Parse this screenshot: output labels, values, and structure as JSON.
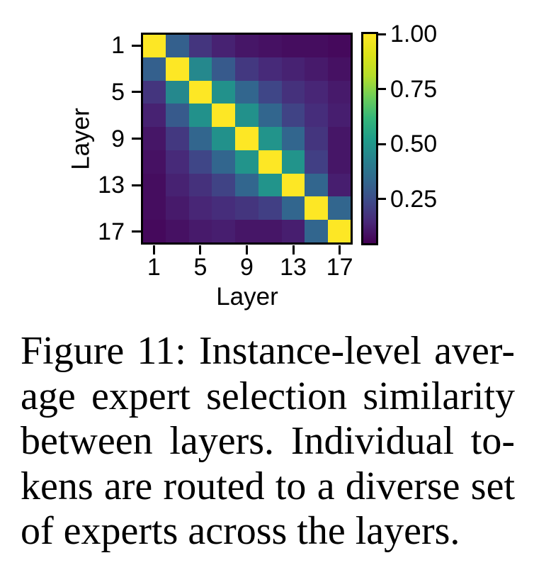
{
  "figure": {
    "caption_lines": [
      "Figure 11: Instance-level aver-",
      "age expert selection similarity",
      "between layers. Individual to-",
      "kens are routed to a diverse set",
      "of experts across the layers."
    ],
    "caption_text": "Figure 11: Instance-level average expert selection similarity between layers. Individual tokens are routed to a diverse set of experts across the layers."
  },
  "chart_data": {
    "type": "heatmap",
    "title": "",
    "xlabel": "Layer",
    "ylabel": "Layer",
    "layers": [
      1,
      3,
      5,
      7,
      9,
      11,
      13,
      15,
      17
    ],
    "tick_labels": [
      "1",
      "5",
      "9",
      "13",
      "17"
    ],
    "tick_cell_indices": [
      0,
      2,
      4,
      6,
      8
    ],
    "matrix": [
      [
        1.0,
        0.31,
        0.18,
        0.13,
        0.1,
        0.09,
        0.08,
        0.08,
        0.07
      ],
      [
        0.31,
        1.0,
        0.45,
        0.29,
        0.19,
        0.15,
        0.13,
        0.11,
        0.09
      ],
      [
        0.18,
        0.45,
        1.0,
        0.48,
        0.33,
        0.23,
        0.17,
        0.14,
        0.11
      ],
      [
        0.13,
        0.29,
        0.48,
        1.0,
        0.48,
        0.33,
        0.22,
        0.16,
        0.12
      ],
      [
        0.1,
        0.19,
        0.33,
        0.48,
        1.0,
        0.49,
        0.33,
        0.18,
        0.1
      ],
      [
        0.09,
        0.15,
        0.23,
        0.33,
        0.49,
        1.0,
        0.49,
        0.21,
        0.1
      ],
      [
        0.08,
        0.13,
        0.17,
        0.22,
        0.33,
        0.49,
        1.0,
        0.33,
        0.12
      ],
      [
        0.08,
        0.11,
        0.14,
        0.16,
        0.18,
        0.21,
        0.33,
        1.0,
        0.33
      ],
      [
        0.07,
        0.09,
        0.11,
        0.12,
        0.1,
        0.1,
        0.12,
        0.33,
        1.0
      ]
    ],
    "colormap": "viridis",
    "vmin": 0.05,
    "vmax": 1.0,
    "grid": false,
    "colorbar": {
      "tick_values": [
        1.0,
        0.75,
        0.5,
        0.25
      ],
      "tick_labels": [
        "1.00",
        "0.75",
        "0.50",
        "0.25"
      ]
    },
    "colors": {
      "diagonal_max": "#fde725",
      "minimum": "#440154",
      "axis": "#000000",
      "background": "#ffffff"
    }
  }
}
